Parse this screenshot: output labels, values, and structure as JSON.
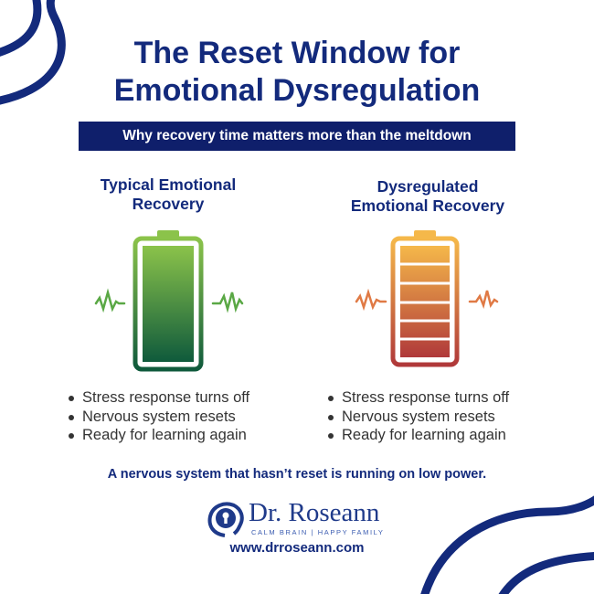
{
  "title": {
    "line1": "The Reset Window for",
    "line2": "Emotional Dysregulation"
  },
  "subtitle_banner": "Why recovery time matters more than the meltdown",
  "columns": [
    {
      "heading_line1": "Typical Emotional",
      "heading_line2": "Recovery",
      "battery_icon": "full-battery-icon",
      "battery_colors": {
        "top": "#8bc34a",
        "bottom": "#0f5a3c"
      },
      "wave_color": "#5aa845",
      "bullets": [
        "Stress response turns off",
        "Nervous system resets",
        "Ready for learning again"
      ]
    },
    {
      "heading_line1": "Dysregulated",
      "heading_line2": "Emotional Recovery",
      "battery_icon": "segmented-battery-icon",
      "battery_colors": {
        "top": "#f5b84a",
        "bottom": "#b0393a"
      },
      "wave_color": "#e07a45",
      "bullets": [
        "Stress response turns off",
        "Nervous system resets",
        "Ready for learning again"
      ]
    }
  ],
  "statement": "A nervous system that hasn’t reset is running on low power.",
  "logo": {
    "name": "Dr. Roseann",
    "tagline": "CALM BRAIN | HAPPY FAMILY"
  },
  "url": "www.drroseann.com",
  "colors": {
    "navy": "#132a7c",
    "banner": "#0f1f6b"
  }
}
